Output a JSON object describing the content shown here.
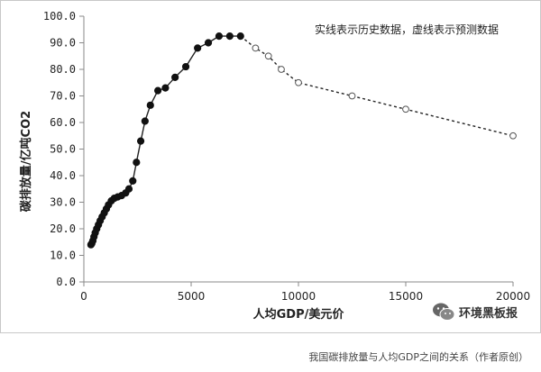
{
  "caption": "我国碳排放量与人均GDP之间的关系（作者原创）",
  "watermark": {
    "text": "环境黑板报",
    "icon": "wechat-icon"
  },
  "chart_data": {
    "type": "line",
    "title": "",
    "xlabel": "人均GDP/美元价",
    "ylabel": "碳排放量/亿吨CO2",
    "xlim": [
      0,
      20000
    ],
    "ylim": [
      0,
      100
    ],
    "x_ticks": [
      "0",
      "5000",
      "10000",
      "15000",
      "20000"
    ],
    "y_ticks": [
      "0.0",
      "10.0",
      "20.0",
      "30.0",
      "40.0",
      "50.0",
      "60.0",
      "70.0",
      "80.0",
      "90.0",
      "100.0"
    ],
    "annotation": "实线表示历史数据，虚线表示预测数据",
    "grid": false,
    "series": [
      {
        "style": "solid",
        "marker": "filled-circle",
        "x": [
          330,
          370,
          420,
          470,
          530,
          600,
          680,
          760,
          850,
          950,
          1050,
          1150,
          1280,
          1420,
          1580,
          1760,
          1950,
          2100,
          2280,
          2450,
          2650,
          2850,
          3100,
          3450,
          3800,
          4250,
          4750,
          5300,
          5800,
          6300,
          6800,
          7300
        ],
        "y": [
          14,
          14.5,
          15.5,
          17,
          18.5,
          20,
          21.5,
          23,
          24.5,
          26,
          27.5,
          29,
          30.5,
          31.5,
          32,
          32.5,
          33.5,
          35,
          38,
          45,
          53,
          60.5,
          66.5,
          72,
          73,
          77,
          81,
          88,
          90,
          92.5,
          92.5,
          92.5
        ]
      },
      {
        "style": "dashed",
        "marker": "open-circle",
        "x": [
          7300,
          8000,
          8600,
          9200,
          10000,
          12500,
          15000,
          20000
        ],
        "y": [
          92.5,
          88,
          85,
          80,
          75,
          70,
          65,
          55
        ]
      }
    ]
  }
}
